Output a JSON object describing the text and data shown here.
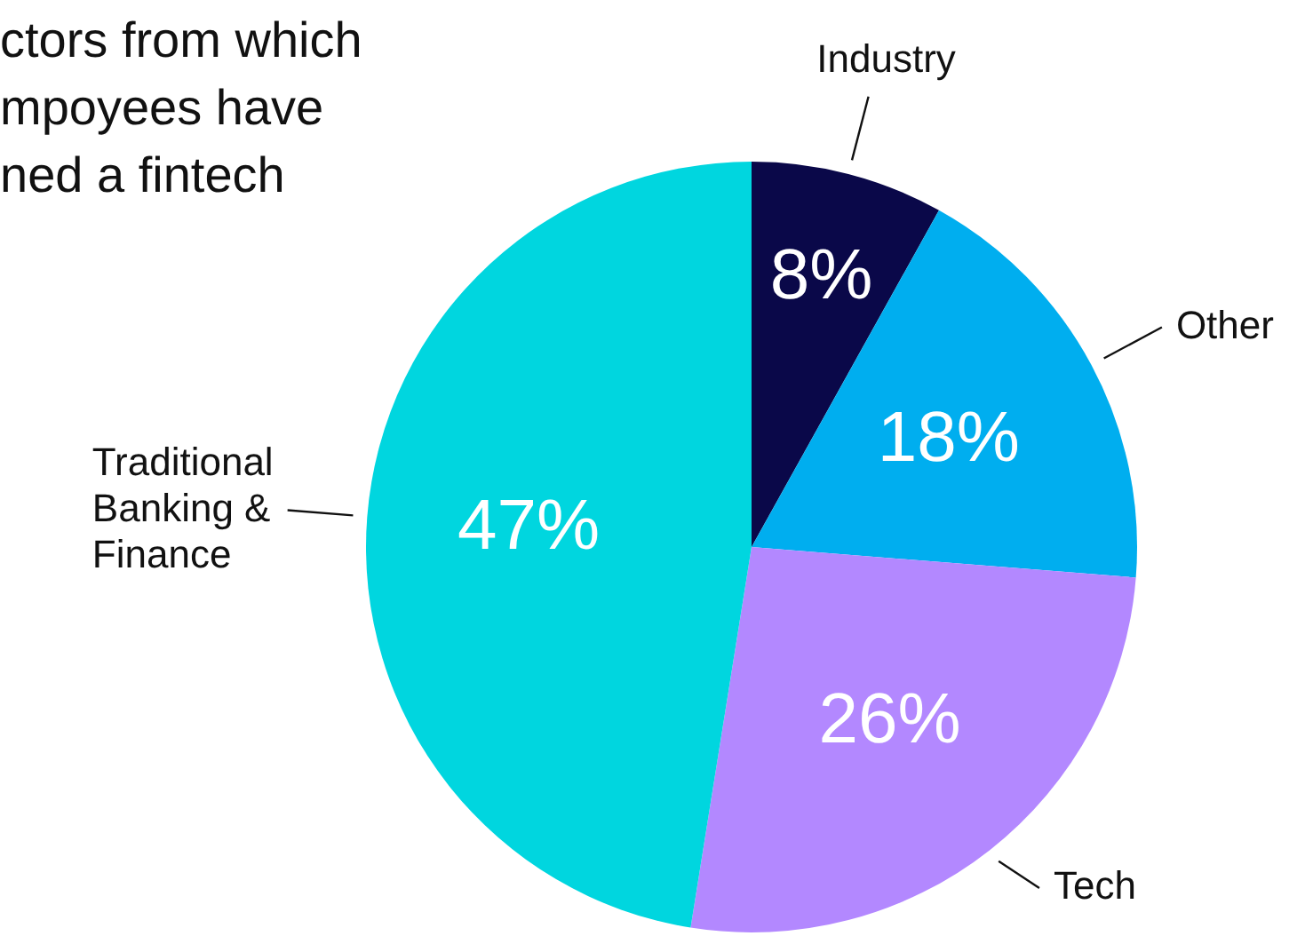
{
  "chart_data": {
    "type": "pie",
    "title": "ctors from which\nmpoyees have\nned a fintech",
    "categories": [
      "Industry",
      "Other",
      "Tech",
      "Traditional Banking & Finance"
    ],
    "values": [
      8,
      18,
      26,
      47
    ],
    "colors": [
      "#0a0849",
      "#00aeef",
      "#b388ff",
      "#00d6df"
    ],
    "value_labels": [
      "8%",
      "18%",
      "26%",
      "47%"
    ],
    "legend": false
  }
}
